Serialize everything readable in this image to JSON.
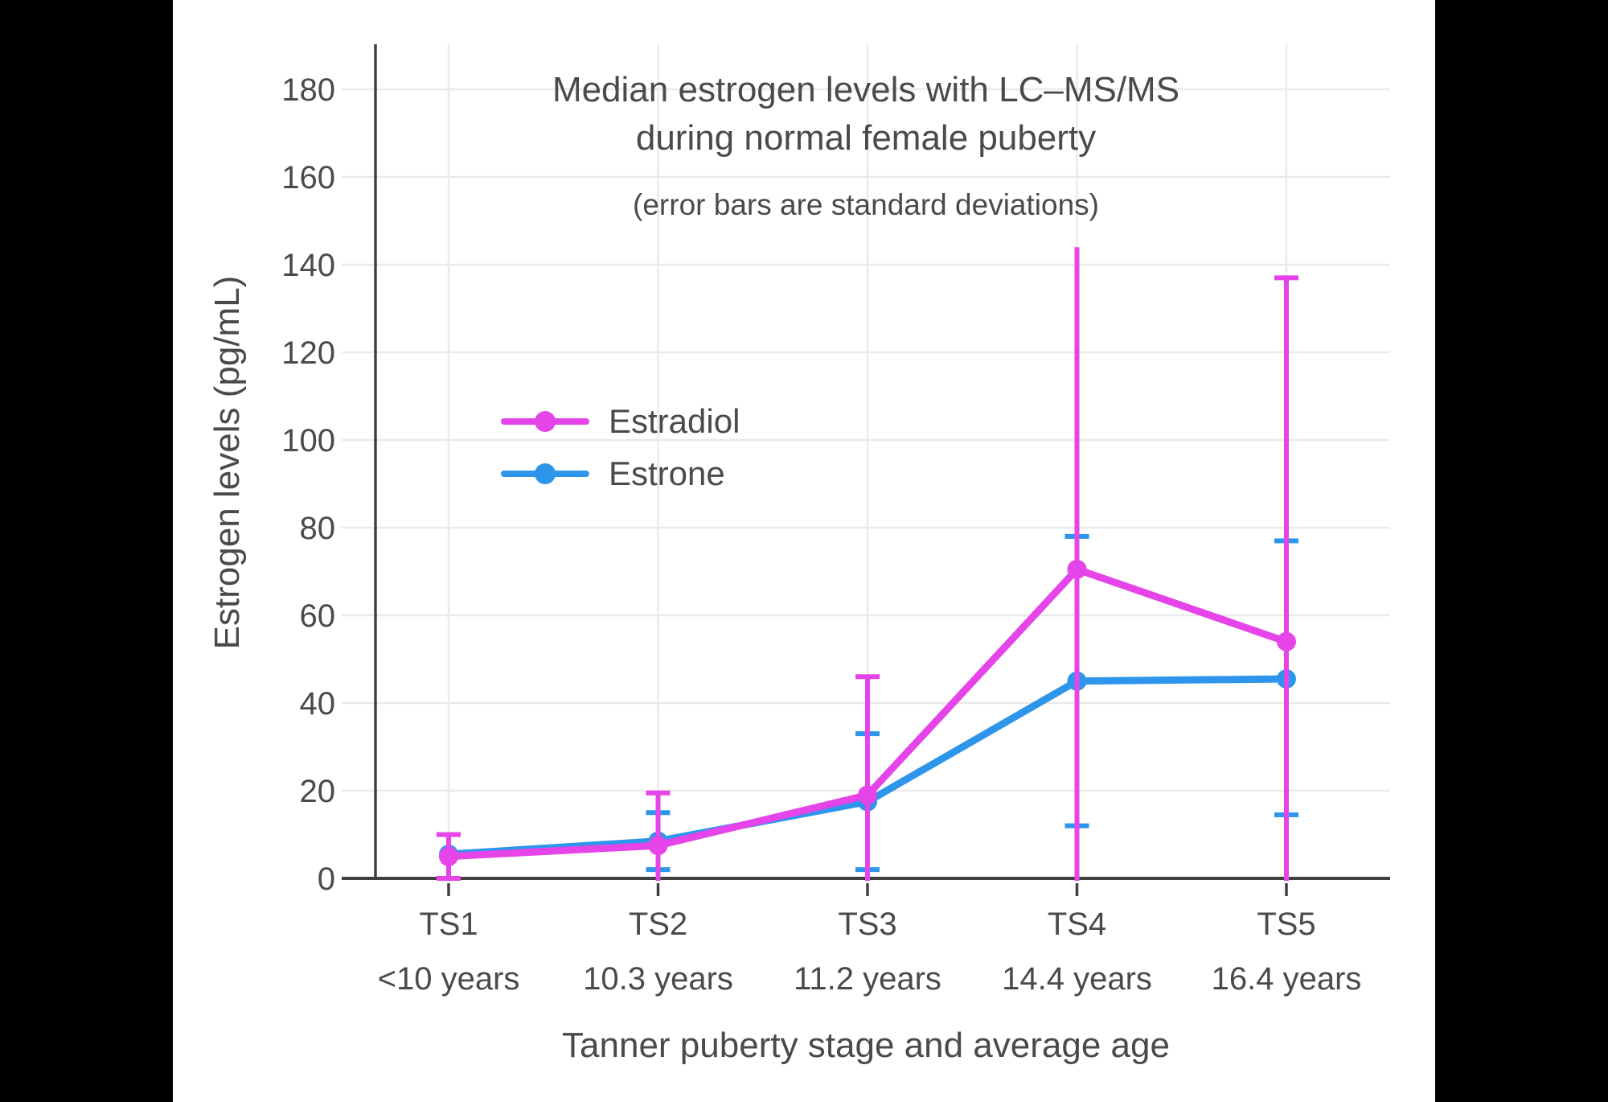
{
  "figure": {
    "title_line1": "Median estrogen levels with LC–MS/MS",
    "title_line2": "during normal female puberty",
    "subtitle": "(error bars are standard deviations)"
  },
  "chart_data": {
    "type": "line",
    "title": "Median estrogen levels with LC–MS/MS during normal female puberty",
    "subtitle": "(error bars are standard deviations)",
    "xlabel": "Tanner puberty stage and average age",
    "ylabel": "Estrogen levels (pg/mL)",
    "categories": [
      "TS1",
      "TS2",
      "TS3",
      "TS4",
      "TS5"
    ],
    "category_ages": [
      "<10 years",
      "10.3 years",
      "11.2 years",
      "14.4 years",
      "16.4 years"
    ],
    "y_ticks": [
      0,
      20,
      40,
      60,
      80,
      100,
      120,
      140,
      160,
      180
    ],
    "ylim": [
      0,
      190
    ],
    "grid": true,
    "legend_position": "inside-upper-left",
    "colors": {
      "background": "#ffffff",
      "outer_background": "#000000",
      "axis": "#404040",
      "gridline": "#eaeaea",
      "text": "#4a4a4a"
    },
    "series": [
      {
        "name": "Estrone",
        "color": "#2D96EB",
        "values": [
          5.5,
          8.5,
          17.5,
          45,
          45.5
        ],
        "error_bars": [
          null,
          {
            "lo": 2,
            "hi": 15,
            "lo_cap": true,
            "hi_cap": true
          },
          {
            "lo": 2,
            "hi": 33,
            "lo_cap": true,
            "hi_cap": true
          },
          {
            "lo": 12,
            "hi": 78,
            "lo_cap": true,
            "hi_cap": true
          },
          {
            "lo": 14.5,
            "hi": 77,
            "lo_cap": true,
            "hi_cap": true
          }
        ]
      },
      {
        "name": "Estradiol",
        "color": "#E544E8",
        "values": [
          5,
          7.5,
          19,
          70.5,
          54
        ],
        "error_bars": [
          {
            "lo": 0,
            "hi": 10,
            "lo_cap": true,
            "hi_cap": true
          },
          {
            "lo": 0,
            "hi": 19.5,
            "lo_cap": false,
            "hi_cap": true
          },
          {
            "lo": 0,
            "hi": 46,
            "lo_cap": false,
            "hi_cap": true
          },
          {
            "lo": 0,
            "hi": 144,
            "lo_cap": false,
            "hi_cap": false
          },
          {
            "lo": 0,
            "hi": 137,
            "lo_cap": false,
            "hi_cap": true
          }
        ]
      }
    ],
    "legend_order": [
      "Estradiol",
      "Estrone"
    ]
  }
}
